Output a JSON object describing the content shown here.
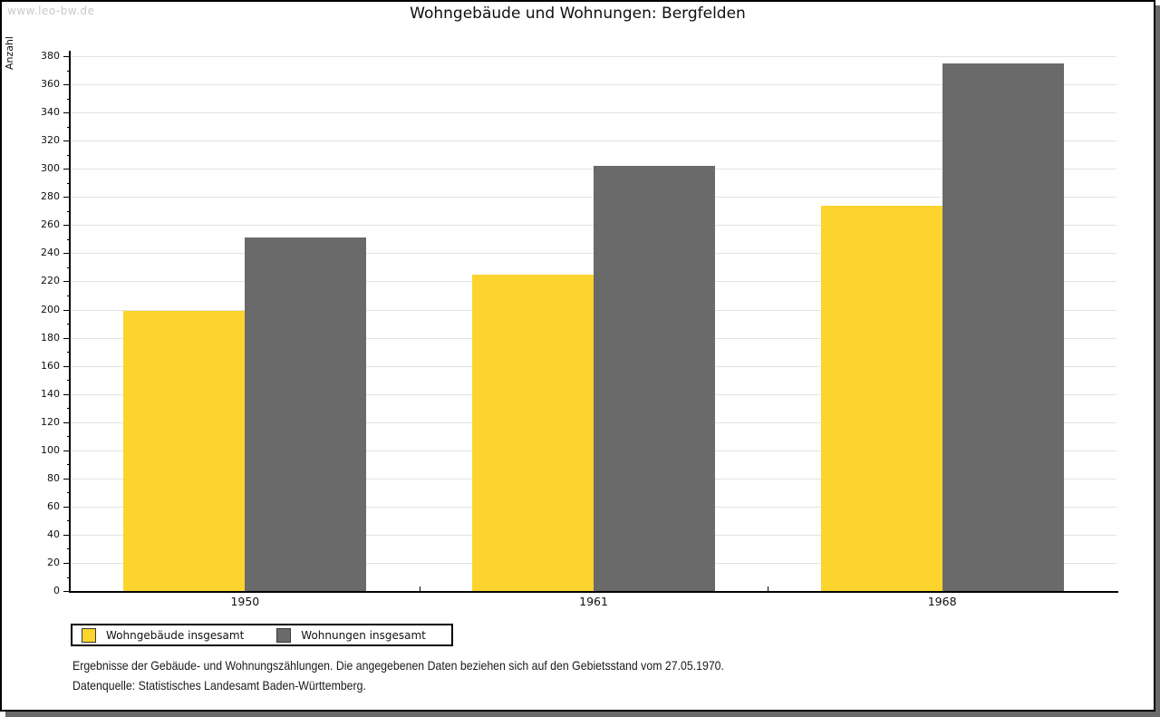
{
  "watermark": "www.leo-bw.de",
  "title": "Wohngebäude und Wohnungen: Bergfelden",
  "footer": {
    "line1": "Ergebnisse der Gebäude- und Wohnungszählungen. Die angegebenen Daten beziehen sich auf den Gebietsstand vom 27.05.1970.",
    "line2": "Datenquelle: Statistisches Landesamt Baden-Württemberg."
  },
  "colors": {
    "series1": "#fcd42d",
    "series2": "#6a6a6a",
    "gridline": "#e3e3e3",
    "axis": "#000000",
    "shadow": "#6a6a6a",
    "watermark": "#c9c9c9"
  },
  "chart_data": {
    "type": "bar",
    "title": "Wohngebäude und Wohnungen: Bergfelden",
    "xlabel": "",
    "ylabel": "Anzahl",
    "categories": [
      "1950",
      "1961",
      "1968"
    ],
    "series": [
      {
        "name": "Wohngebäude insgesamt",
        "color": "#fcd42d",
        "values": [
          199,
          225,
          274
        ]
      },
      {
        "name": "Wohnungen insgesamt",
        "color": "#6a6a6a",
        "values": [
          251,
          302,
          375
        ]
      }
    ],
    "ylim": [
      0,
      380
    ],
    "ytick_step": 20,
    "yminor_step": 10,
    "grid": true,
    "legend_position": "bottom-left"
  }
}
